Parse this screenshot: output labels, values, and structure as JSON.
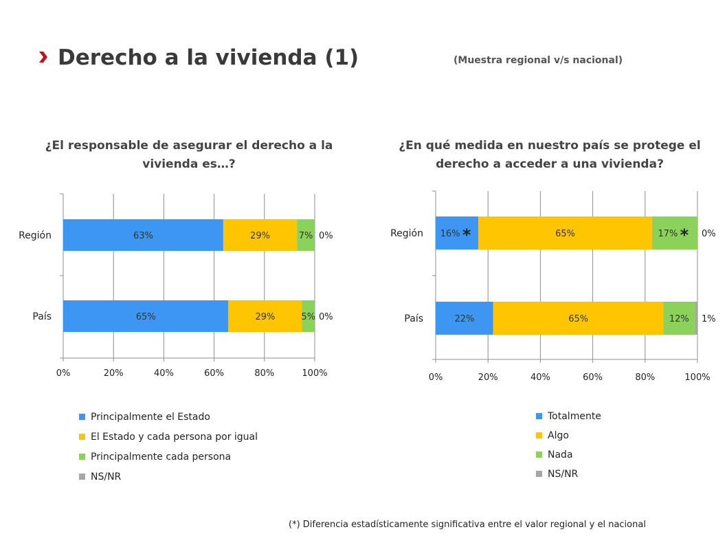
{
  "header": {
    "title": "Derecho a la vivienda (1)",
    "subtitle": "(Muestra regional v/s nacional)",
    "accent_color": "#c0121b"
  },
  "footnote": "(*) Diferencia estadísticamente significativa entre el valor regional y el nacional",
  "chart_data": [
    {
      "type": "bar",
      "orientation": "horizontal",
      "stacked": "percent",
      "title": "¿El responsable de asegurar el derecho a la vivienda es…?",
      "categories": [
        "Región",
        "País"
      ],
      "series": [
        {
          "name": "Principalmente el Estado",
          "color": "#3d97f2",
          "values": [
            63,
            65
          ],
          "labels": [
            "63%",
            "65%"
          ]
        },
        {
          "name": "El Estado y cada persona por igual",
          "color": "#ffc600",
          "values": [
            29,
            29
          ],
          "labels": [
            "29%",
            "29%"
          ]
        },
        {
          "name": "Principalmente cada persona",
          "color": "#8bd25a",
          "values": [
            7,
            5
          ],
          "labels": [
            "7%",
            "5%"
          ]
        },
        {
          "name": "NS/NR",
          "color": "#a6a6a6",
          "values": [
            0,
            0
          ],
          "labels": [
            "0%",
            "0%"
          ]
        }
      ],
      "xlim": [
        0,
        100
      ],
      "x_ticks": [
        "0%",
        "20%",
        "40%",
        "60%",
        "80%",
        "100%"
      ],
      "grid": true,
      "legend": "bottom"
    },
    {
      "type": "bar",
      "orientation": "horizontal",
      "stacked": "percent",
      "title": "¿En qué medida en nuestro país se protege el derecho a acceder a una vivienda?",
      "categories": [
        "Región",
        "País"
      ],
      "series": [
        {
          "name": "Totalmente",
          "color": "#3d97f2",
          "values": [
            16,
            22
          ],
          "labels": [
            "16%",
            "22%"
          ],
          "significant": [
            true,
            false
          ]
        },
        {
          "name": "Algo",
          "color": "#ffc600",
          "values": [
            65,
            65
          ],
          "labels": [
            "65%",
            "65%"
          ],
          "significant": [
            false,
            false
          ]
        },
        {
          "name": "Nada",
          "color": "#8bd25a",
          "values": [
            17,
            12
          ],
          "labels": [
            "17%",
            "12%"
          ],
          "significant": [
            true,
            false
          ]
        },
        {
          "name": "NS/NR",
          "color": "#a6a6a6",
          "values": [
            0,
            1
          ],
          "labels": [
            "0%",
            "1%"
          ],
          "significant": [
            false,
            false
          ]
        }
      ],
      "significance_marker": "*",
      "xlim": [
        0,
        100
      ],
      "x_ticks": [
        "0%",
        "20%",
        "40%",
        "60%",
        "80%",
        "100%"
      ],
      "grid": true,
      "legend": "bottom"
    }
  ]
}
